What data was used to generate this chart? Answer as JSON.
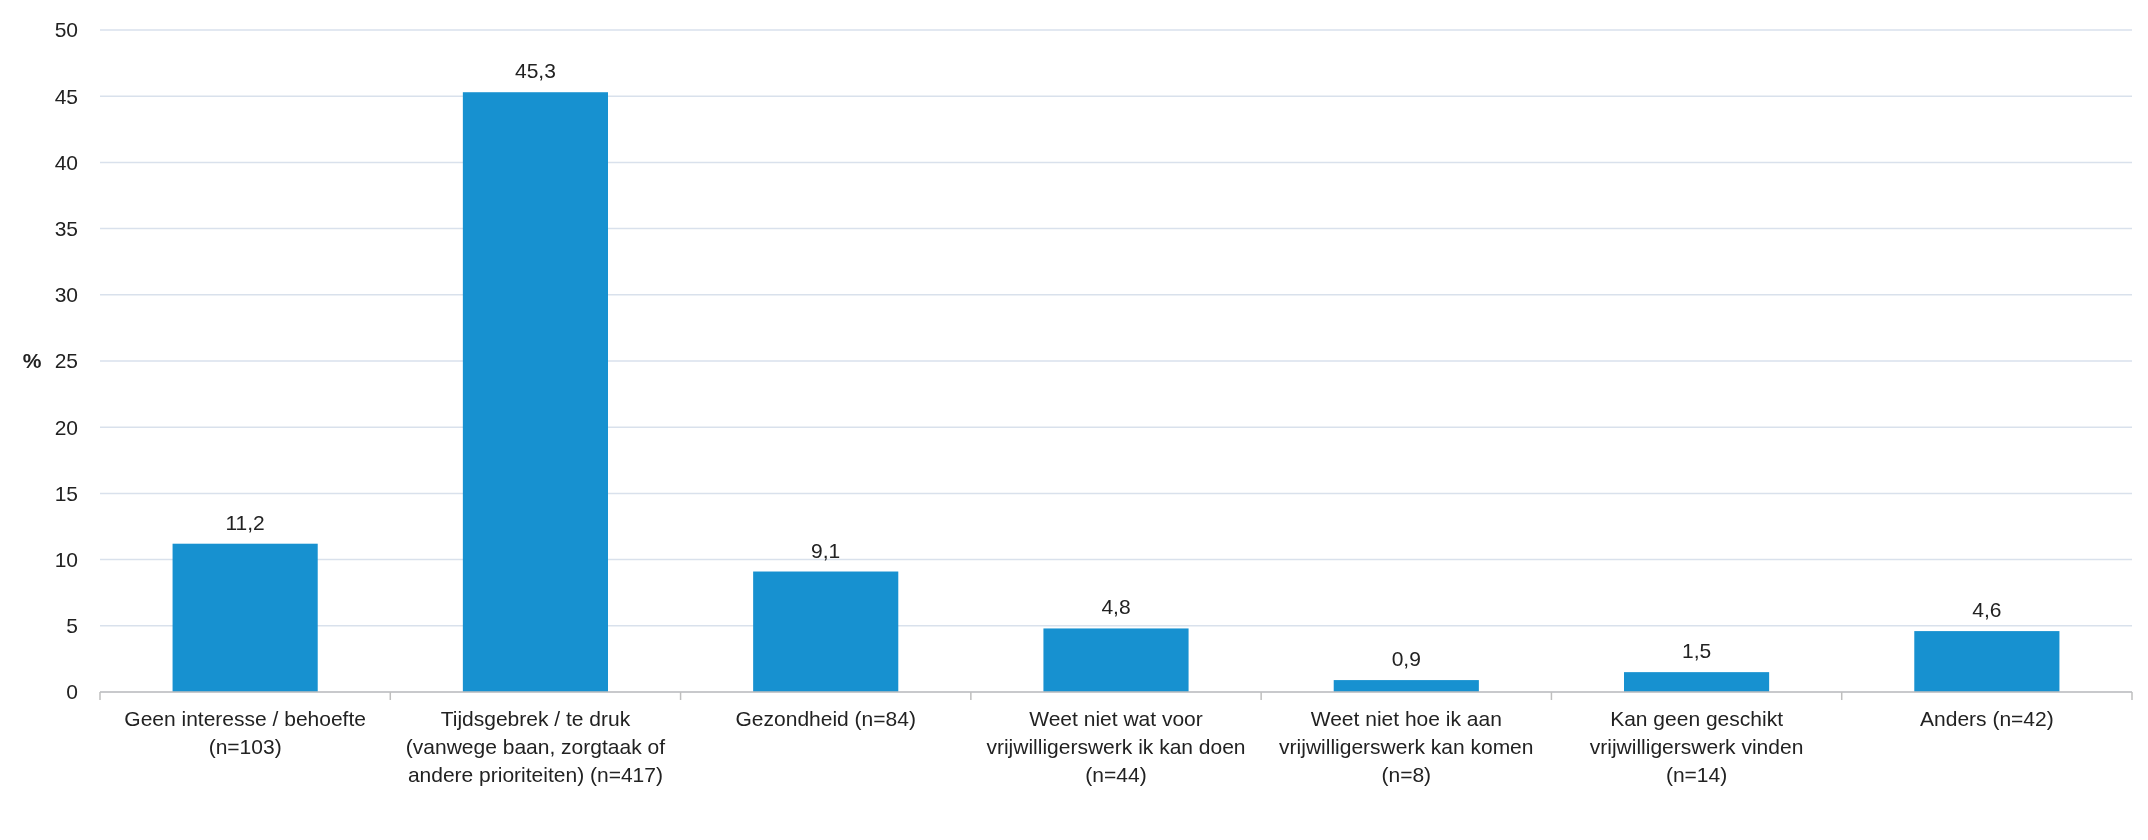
{
  "chart_data": {
    "type": "bar",
    "ylabel": "%",
    "categories": [
      "Geen interesse / behoefte (n=103)",
      "Tijdsgebrek / te druk (vanwege baan, zorgtaak of andere prioriteiten) (n=417)",
      "Gezondheid (n=84)",
      "Weet niet wat voor vrijwilligerswerk ik kan doen (n=44)",
      "Weet niet hoe ik aan vrijwilligerswerk kan komen (n=8)",
      "Kan geen geschikt vrijwilligerswerk vinden (n=14)",
      "Anders (n=42)"
    ],
    "values": [
      11.2,
      45.3,
      9.1,
      4.8,
      0.9,
      1.5,
      4.6
    ],
    "value_labels": [
      "11,2",
      "45,3",
      "9,1",
      "4,8",
      "0,9",
      "1,5",
      "4,6"
    ],
    "color": "#1791d0",
    "ylim": [
      0,
      50
    ],
    "yticks": [
      0,
      5,
      10,
      15,
      20,
      25,
      30,
      35,
      40,
      45,
      50
    ],
    "grid": "y"
  }
}
